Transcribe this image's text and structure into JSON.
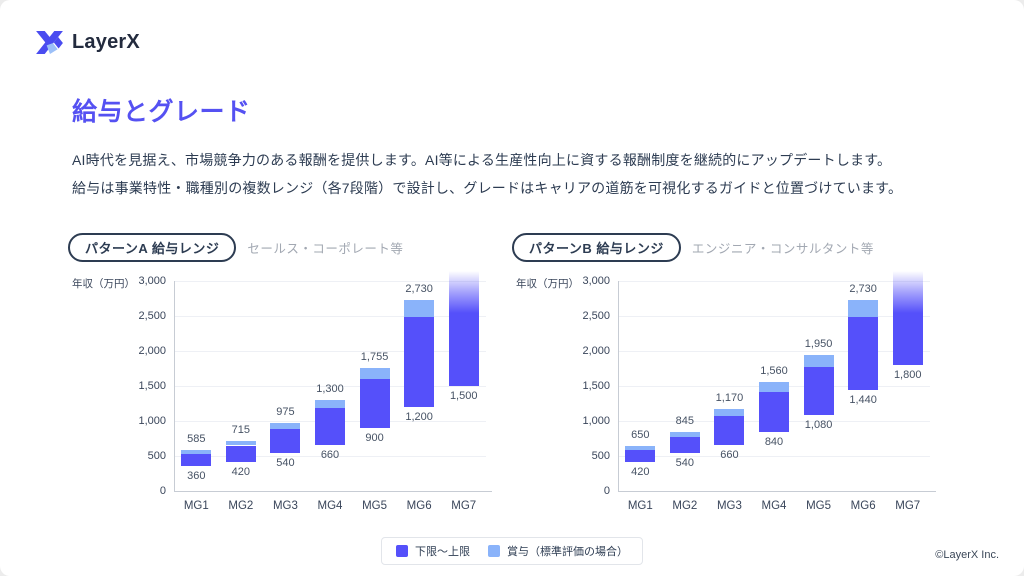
{
  "page": {
    "brand": "LayerX",
    "footer": "©LayerX Inc."
  },
  "title": "給与とグレード",
  "intro": {
    "line1": "AI時代を見据え、市場競争力のある報酬を提供します。AI等による生産性向上に資する報酬制度を継続的にアップデートします。",
    "line2": "給与は事業特性・職種別の複数レンジ（各7段階）で設計し、グレードはキャリアの道筋を可視化するガイドと位置づけています。"
  },
  "legend": {
    "items": [
      {
        "label": "下限～上限",
        "color": "#5550fa"
      },
      {
        "label": "賞与（標準評価の場合）",
        "color": "#8ab3fa"
      }
    ]
  },
  "colors": {
    "accent": "#5551f2",
    "bar_base": "#5550fa",
    "bar_bonus": "#8ab3fa",
    "text_dark": "#2d3c52",
    "text_gray": "#a2a8b2"
  },
  "chart_data": [
    {
      "type": "bar",
      "title": "パターンA 給与レンジ",
      "subtitle": "セールス・コーポレート等",
      "ylabel": "年収（万円）",
      "ylim": [
        0,
        3000
      ],
      "ytick_step": 500,
      "grid": true,
      "categories": [
        "MG1",
        "MG2",
        "MG3",
        "MG4",
        "MG5",
        "MG6",
        "MG7"
      ],
      "series": [
        {
          "name": "下限～上限",
          "role": "base",
          "color": "#5550fa"
        },
        {
          "name": "賞与（標準評価の場合）",
          "role": "bonus",
          "color": "#8ab3fa"
        }
      ],
      "bars": [
        {
          "category": "MG1",
          "lower": 360,
          "upper": 585,
          "bonus_from": 530
        },
        {
          "category": "MG2",
          "lower": 420,
          "upper": 715,
          "bonus_from": 650
        },
        {
          "category": "MG3",
          "lower": 540,
          "upper": 975,
          "bonus_from": 885
        },
        {
          "category": "MG4",
          "lower": 660,
          "upper": 1300,
          "bonus_from": 1180
        },
        {
          "category": "MG5",
          "lower": 900,
          "upper": 1755,
          "bonus_from": 1595
        },
        {
          "category": "MG6",
          "lower": 1200,
          "upper": 2730,
          "bonus_from": 2480
        },
        {
          "category": "MG7",
          "lower": 1500,
          "upper": null,
          "open_ended": true
        }
      ]
    },
    {
      "type": "bar",
      "title": "パターンB 給与レンジ",
      "subtitle": "エンジニア・コンサルタント等",
      "ylabel": "年収（万円）",
      "ylim": [
        0,
        3000
      ],
      "ytick_step": 500,
      "grid": true,
      "categories": [
        "MG1",
        "MG2",
        "MG3",
        "MG4",
        "MG5",
        "MG6",
        "MG7"
      ],
      "series": [
        {
          "name": "下限～上限",
          "role": "base",
          "color": "#5550fa"
        },
        {
          "name": "賞与（標準評価の場合）",
          "role": "bonus",
          "color": "#8ab3fa"
        }
      ],
      "bars": [
        {
          "category": "MG1",
          "lower": 420,
          "upper": 650,
          "bonus_from": 590
        },
        {
          "category": "MG2",
          "lower": 540,
          "upper": 845,
          "bonus_from": 770
        },
        {
          "category": "MG3",
          "lower": 660,
          "upper": 1170,
          "bonus_from": 1065
        },
        {
          "category": "MG4",
          "lower": 840,
          "upper": 1560,
          "bonus_from": 1420
        },
        {
          "category": "MG5",
          "lower": 1080,
          "upper": 1950,
          "bonus_from": 1775
        },
        {
          "category": "MG6",
          "lower": 1440,
          "upper": 2730,
          "bonus_from": 2480
        },
        {
          "category": "MG7",
          "lower": 1800,
          "upper": null,
          "open_ended": true
        }
      ]
    }
  ]
}
